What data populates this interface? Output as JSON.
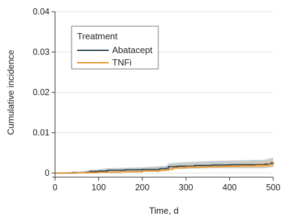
{
  "chart_data": {
    "type": "line",
    "xlabel": "Time, d",
    "ylabel": "Cumulative incidence",
    "xlim": [
      0,
      500
    ],
    "ylim": [
      0,
      0.04
    ],
    "x_ticks": [
      0,
      100,
      200,
      300,
      400,
      500
    ],
    "y_ticks": [
      0,
      0.01,
      0.02,
      0.03,
      0.04
    ],
    "y_tick_labels": [
      "0",
      "0.01",
      "0.02",
      "0.03",
      "0.04"
    ],
    "grid": "horizontal",
    "legend": {
      "title": "Treatment",
      "placement": "top-left"
    },
    "series": [
      {
        "name": "Abatacept",
        "color": "#2e4a5a",
        "band_color": "#9aa4a8",
        "x": [
          0,
          40,
          70,
          80,
          100,
          120,
          160,
          200,
          240,
          255,
          260,
          280,
          320,
          360,
          400,
          440,
          480,
          495,
          500
        ],
        "y": [
          0,
          0.0001,
          0.0002,
          0.0004,
          0.0005,
          0.0007,
          0.0008,
          0.0009,
          0.0011,
          0.0012,
          0.0016,
          0.0017,
          0.0019,
          0.002,
          0.0021,
          0.0021,
          0.0022,
          0.0025,
          0.0026
        ],
        "lower": [
          0,
          0.0,
          0.0,
          0.0001,
          0.0002,
          0.0003,
          0.0004,
          0.0005,
          0.0006,
          0.0007,
          0.0009,
          0.001,
          0.0011,
          0.0012,
          0.0012,
          0.0012,
          0.0012,
          0.0014,
          0.0014
        ],
        "upper": [
          0,
          0.0003,
          0.0005,
          0.0008,
          0.0009,
          0.0012,
          0.0013,
          0.0014,
          0.0017,
          0.0018,
          0.0024,
          0.0026,
          0.0028,
          0.003,
          0.0031,
          0.0032,
          0.0033,
          0.0037,
          0.0038
        ]
      },
      {
        "name": "TNFi",
        "color": "#e8952e",
        "band_color": "#f3c48a",
        "x": [
          0,
          50,
          100,
          150,
          200,
          240,
          260,
          270,
          300,
          340,
          380,
          420,
          460,
          490,
          500
        ],
        "y": [
          0,
          0.0001,
          0.0002,
          0.0003,
          0.0005,
          0.0007,
          0.0009,
          0.0013,
          0.0015,
          0.0016,
          0.0017,
          0.0018,
          0.0019,
          0.0021,
          0.0023
        ],
        "lower": [
          0,
          0.0,
          0.0001,
          0.0002,
          0.0003,
          0.0004,
          0.0006,
          0.0009,
          0.0011,
          0.0012,
          0.0012,
          0.0013,
          0.0013,
          0.0014,
          0.0015
        ],
        "upper": [
          0,
          0.0002,
          0.0004,
          0.0005,
          0.0007,
          0.001,
          0.0012,
          0.0017,
          0.002,
          0.0021,
          0.0022,
          0.0023,
          0.0025,
          0.0028,
          0.0031
        ]
      }
    ]
  }
}
